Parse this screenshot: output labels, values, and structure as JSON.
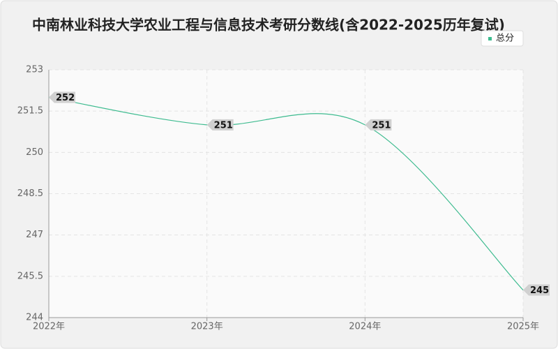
{
  "chart_data": {
    "type": "line",
    "title": "中南林业科技大学农业工程与信息技术考研分数线(含2022-2025历年复试)",
    "categories": [
      "2022年",
      "2023年",
      "2024年",
      "2025年"
    ],
    "series": [
      {
        "name": "总分",
        "color": "#3dbb8f",
        "values": [
          252,
          251,
          251,
          245
        ]
      }
    ],
    "ylim": [
      244,
      253
    ],
    "yticks": [
      244,
      245.5,
      247,
      248.5,
      250,
      251.5,
      253
    ],
    "grid": true,
    "legend": "top-right",
    "smooth": true
  }
}
